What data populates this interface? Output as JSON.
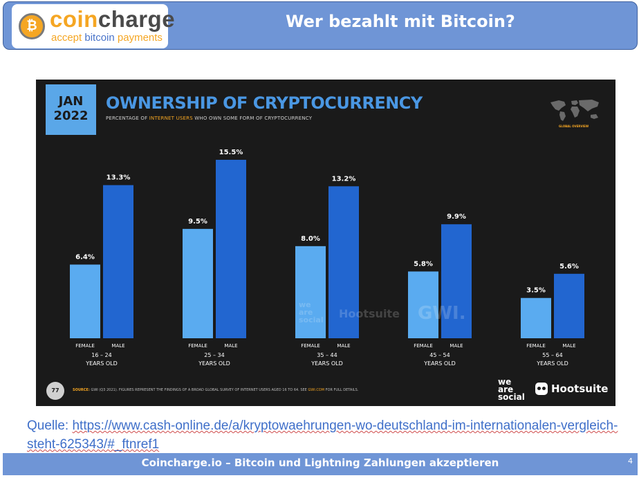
{
  "header": {
    "logo_word_1": "coin",
    "logo_word_2": "charge",
    "logo_tagline_1": "accept ",
    "logo_tagline_2": "bitcoin",
    "logo_tagline_3": " payments",
    "title": "Wer bezahlt mit Bitcoin?"
  },
  "chart_panel": {
    "date_month": "JAN",
    "date_year": "2022",
    "global_overview": "GLOBAL OVERVIEW",
    "source_label": "SOURCE:",
    "source_text": " GWI (Q3 2021). FIGURES REPRESENT THE FINDINGS OF A BROAD GLOBAL SURVEY OF INTERNET USERS AGED 16 TO 64. SEE ",
    "source_link": "GWI.COM",
    "source_end": " FOR FULL DETAILS.",
    "page_number": "77",
    "footer_was_1": "we",
    "footer_was_2": "are",
    "footer_was_3": "social",
    "footer_hootsuite": "Hootsuite",
    "watermark_was_1": "we",
    "watermark_was_2": "are",
    "watermark_was_3": "social",
    "watermark_hootsuite": "Hootsuite",
    "watermark_gwi": "GWI."
  },
  "chart_data": {
    "type": "bar",
    "title": "OWNERSHIP OF CRYPTOCURRENCY",
    "subtitle_1": "PERCENTAGE OF ",
    "subtitle_highlight": "INTERNET USERS",
    "subtitle_2": " WHO OWN SOME FORM OF CRYPTOCURRENCY",
    "categories": [
      "16 – 24",
      "25 – 34",
      "35 – 44",
      "45 – 54",
      "55 – 64"
    ],
    "category_suffix": "YEARS OLD",
    "series": [
      {
        "name": "FEMALE",
        "values": [
          6.4,
          9.5,
          8.0,
          5.8,
          3.5
        ],
        "labels": [
          "6.4%",
          "9.5%",
          "8.0%",
          "5.8%",
          "3.5%"
        ],
        "color": "#5aabf0"
      },
      {
        "name": "MALE",
        "values": [
          13.3,
          15.5,
          13.2,
          9.9,
          5.6
        ],
        "labels": [
          "13.3%",
          "15.5%",
          "13.2%",
          "9.9%",
          "5.6%"
        ],
        "color": "#2266d0"
      }
    ],
    "ylim": [
      0,
      15.5
    ],
    "grid": false,
    "legend": "none"
  },
  "source_note": {
    "prefix": "Quelle: ",
    "url": "https://www.cash-online.de/a/kryptowaehrungen-wo-deutschland-im-internationalen-vergleich-steht-625343/#_ftnref1"
  },
  "footer": {
    "text": "Coincharge.io – Bitcoin und Lightning Zahlungen akzeptieren",
    "slide_number": "4"
  },
  "colors": {
    "header_blue": "#6f95d6",
    "panel_bg": "#1a1a1a",
    "accent_orange": "#f5a623",
    "chart_title_blue": "#4a97e3"
  }
}
